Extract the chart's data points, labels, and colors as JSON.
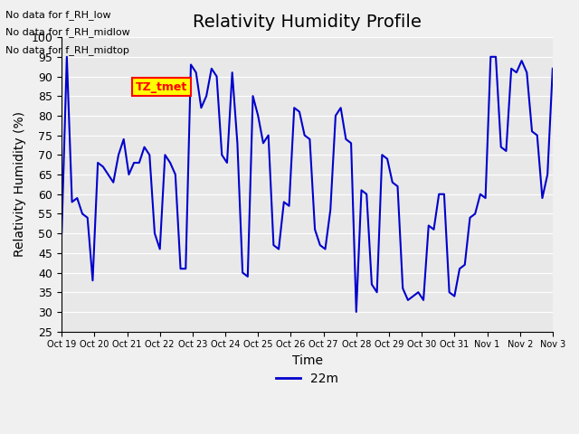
{
  "title": "Relativity Humidity Profile",
  "ylabel": "Relativity Humidity (%)",
  "xlabel": "Time",
  "ylim": [
    25,
    100
  ],
  "legend_label": "22m",
  "line_color": "#0000cc",
  "line_width": 1.5,
  "annotations": [
    "No data for f_RH_low",
    "No data for f_RH_midlow",
    "No data for f_RH_midtop"
  ],
  "tz_tmet_label": "TZ_tmet",
  "background_color": "#e8e8e8",
  "plot_bg_color": "#e8e8e8",
  "yticks": [
    25,
    30,
    35,
    40,
    45,
    50,
    55,
    60,
    65,
    70,
    75,
    80,
    85,
    90,
    95,
    100
  ],
  "x_days": [
    "Oct 19",
    "Oct 20",
    "Oct 21",
    "Oct 22",
    "Oct 23",
    "Oct 24",
    "Oct 25",
    "Oct 26",
    "Oct 27",
    "Oct 28",
    "Oct 29",
    "Oct 30",
    "Oct 31",
    "Nov 1",
    "Nov 2",
    "Nov 3"
  ],
  "x_day_positions": [
    0,
    1,
    2,
    3,
    4,
    5,
    6,
    7,
    8,
    9,
    10,
    11,
    12,
    13,
    14,
    15
  ],
  "rh_data": [
    50,
    95,
    58,
    59,
    55,
    54,
    38,
    68,
    67,
    65,
    63,
    70,
    74,
    65,
    68,
    68,
    72,
    70,
    50,
    46,
    70,
    68,
    65,
    41,
    41,
    93,
    91,
    82,
    85,
    92,
    90,
    70,
    68,
    91,
    73,
    40,
    39,
    85,
    80,
    73,
    75,
    47,
    46,
    58,
    57,
    82,
    81,
    75,
    74,
    51,
    47,
    46,
    56,
    80,
    82,
    74,
    73,
    30,
    61,
    60,
    37,
    35,
    70,
    69,
    63,
    62,
    36,
    33,
    34,
    35,
    33,
    52,
    51,
    60,
    60,
    35,
    34,
    41,
    42,
    54,
    55,
    60,
    59,
    95,
    95,
    72,
    71,
    92,
    91,
    94,
    91,
    76,
    75,
    59,
    65,
    92
  ]
}
